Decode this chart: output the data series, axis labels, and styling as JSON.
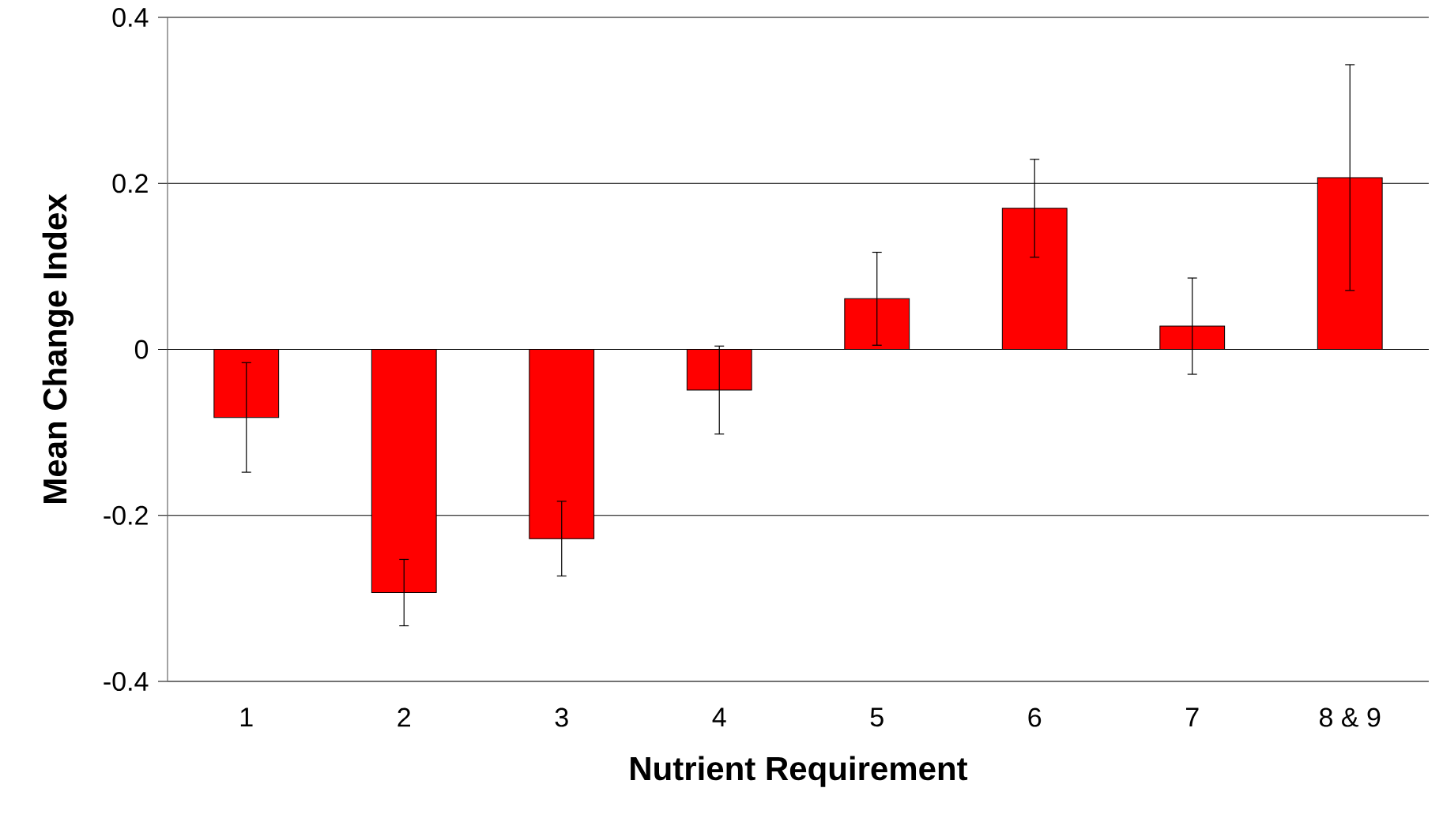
{
  "chart_data": {
    "type": "bar",
    "xlabel": "Nutrient Requirement",
    "ylabel": "Mean Change Index",
    "categories": [
      "1",
      "2",
      "3",
      "4",
      "5",
      "6",
      "7",
      "8 & 9"
    ],
    "values": [
      -0.082,
      -0.293,
      -0.228,
      -0.049,
      0.061,
      0.17,
      0.028,
      0.207
    ],
    "errors": [
      0.066,
      0.04,
      0.045,
      0.053,
      0.056,
      0.059,
      0.058,
      0.136
    ],
    "color": "#ff0000",
    "ylim": [
      -0.4,
      0.4
    ],
    "yticks": [
      -0.4,
      -0.2,
      0,
      0.2,
      0.4
    ],
    "grid": "y"
  }
}
